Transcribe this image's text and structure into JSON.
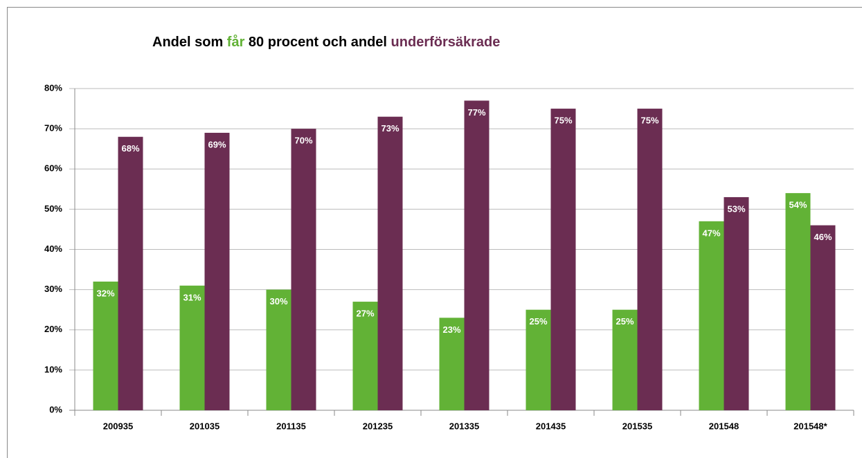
{
  "chart_data": {
    "type": "bar",
    "title_parts": [
      "Andel  som ",
      "får",
      " 80 procent och andel ",
      "underförsäkrade"
    ],
    "title_colors": [
      "#000000",
      "#62b236",
      "#000000",
      "#6b2d52"
    ],
    "categories": [
      "200935",
      "201035",
      "201135",
      "201235",
      "201335",
      "201435",
      "201535",
      "201548",
      "201548*"
    ],
    "series": [
      {
        "color": "#62b236",
        "values": [
          32,
          31,
          30,
          27,
          23,
          25,
          25,
          47,
          54
        ],
        "value_labels": [
          "32%",
          "31%",
          "30%",
          "27%",
          "23%",
          "25%",
          "25%",
          "47%",
          "54%"
        ]
      },
      {
        "color": "#6b2d52",
        "values": [
          68,
          69,
          70,
          73,
          77,
          75,
          75,
          53,
          46
        ],
        "value_labels": [
          "68%",
          "69%",
          "70%",
          "73%",
          "77%",
          "75%",
          "75%",
          "53%",
          "46%"
        ]
      }
    ],
    "ylim": [
      0,
      80
    ],
    "yticks": [
      {
        "value": 0,
        "label": "0%"
      },
      {
        "value": 10,
        "label": "10%"
      },
      {
        "value": 20,
        "label": "20%"
      },
      {
        "value": 30,
        "label": "30%"
      },
      {
        "value": 40,
        "label": "40%"
      },
      {
        "value": 50,
        "label": "50%"
      },
      {
        "value": 60,
        "label": "60%"
      },
      {
        "value": 70,
        "label": "70%"
      },
      {
        "value": 80,
        "label": "80%"
      }
    ],
    "grid": true
  }
}
